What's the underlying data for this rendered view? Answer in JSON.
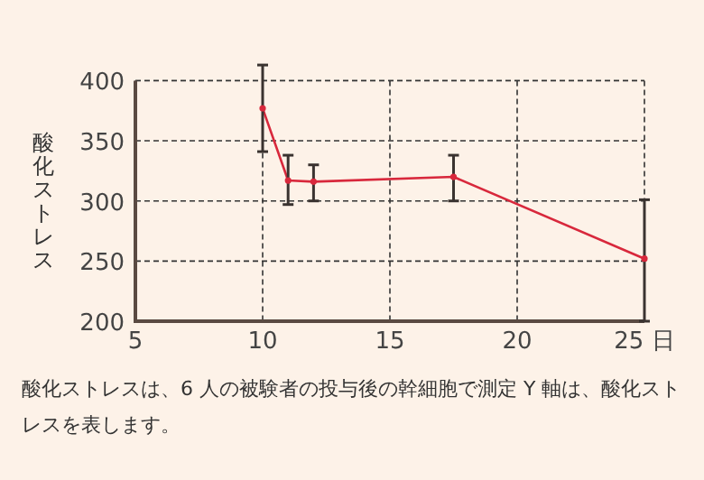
{
  "chart_data": {
    "type": "line",
    "ylabel": "酸化ストレス",
    "x": [
      10,
      11,
      12,
      17.5,
      25
    ],
    "series": [
      {
        "color": "#d8283c",
        "values": [
          377,
          317,
          316,
          320,
          252
        ],
        "errors": [
          [
            341,
            413
          ],
          [
            297,
            338
          ],
          [
            300,
            330
          ],
          [
            300,
            338
          ],
          [
            200,
            301
          ]
        ]
      }
    ],
    "xlim": [
      5,
      25
    ],
    "xticks": [
      5,
      10,
      15,
      20,
      {
        "value": 25,
        "label": "25 日"
      }
    ],
    "ylim": [
      200,
      400
    ],
    "yticks": [
      200,
      250,
      300,
      350,
      400
    ],
    "grid": true,
    "marker": "circle",
    "line_style": "solid",
    "annotations": [
      "酸化ストレスは、6 人の被験者の投与後の幹細胞で測定 Y 軸は、酸化ストレスを表します。"
    ]
  }
}
